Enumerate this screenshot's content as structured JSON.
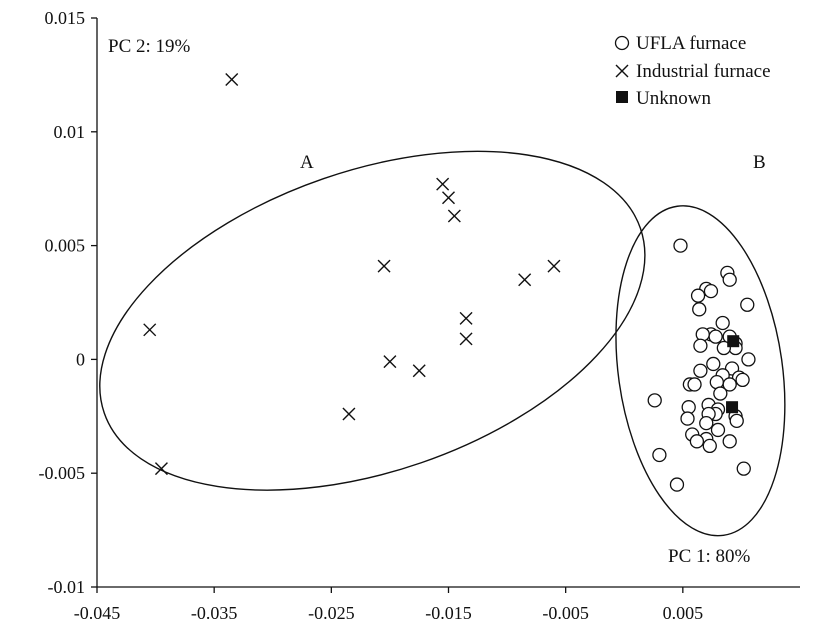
{
  "chart_data": {
    "type": "scatter",
    "title": "",
    "xlabel": "",
    "ylabel": "",
    "xlim": [
      -0.045,
      0.015
    ],
    "ylim": [
      -0.01,
      0.015
    ],
    "grid": false,
    "legend_position": "top-right",
    "x_ticks": [
      -0.045,
      -0.035,
      -0.025,
      -0.015,
      -0.005,
      0.005
    ],
    "x_tick_labels": [
      "-0.045",
      "-0.035",
      "-0.025",
      "-0.015",
      "-0.005",
      "0.005"
    ],
    "y_ticks": [
      -0.01,
      -0.005,
      0,
      0.005,
      0.01,
      0.015
    ],
    "y_tick_labels": [
      "-0.01",
      "-0.005",
      "0",
      "0.005",
      "0.01",
      "0.015"
    ],
    "annotations": {
      "pc2": "PC 2: 19%",
      "pc1": "PC 1: 80%",
      "group_a": "A",
      "group_b": "B"
    },
    "series": [
      {
        "name": "UFLA furnace",
        "marker": "circle",
        "points": [
          [
            0.0048,
            0.005
          ],
          [
            0.0088,
            0.0038
          ],
          [
            0.009,
            0.0035
          ],
          [
            0.007,
            0.0031
          ],
          [
            0.0074,
            0.003
          ],
          [
            0.0063,
            0.0028
          ],
          [
            0.0105,
            0.0024
          ],
          [
            0.0064,
            0.0022
          ],
          [
            0.0084,
            0.0016
          ],
          [
            0.0074,
            0.0011
          ],
          [
            0.0067,
            0.0011
          ],
          [
            0.0078,
            0.001
          ],
          [
            0.009,
            0.001
          ],
          [
            0.0095,
            0.0007
          ],
          [
            0.0065,
            0.0006
          ],
          [
            0.0095,
            0.0005
          ],
          [
            0.0085,
            0.0005
          ],
          [
            0.0106,
            0.0
          ],
          [
            0.0076,
            -0.0002
          ],
          [
            0.0065,
            -0.0005
          ],
          [
            0.0092,
            -0.0004
          ],
          [
            0.0084,
            -0.0007
          ],
          [
            0.0098,
            -0.0008
          ],
          [
            0.0101,
            -0.0009
          ],
          [
            0.0079,
            -0.001
          ],
          [
            0.009,
            -0.0011
          ],
          [
            0.0056,
            -0.0011
          ],
          [
            0.006,
            -0.0011
          ],
          [
            0.0082,
            -0.0015
          ],
          [
            0.0072,
            -0.002
          ],
          [
            0.0026,
            -0.0018
          ],
          [
            0.0055,
            -0.0021
          ],
          [
            0.008,
            -0.0022
          ],
          [
            0.0078,
            -0.0024
          ],
          [
            0.0072,
            -0.0024
          ],
          [
            0.0095,
            -0.0025
          ],
          [
            0.0096,
            -0.0027
          ],
          [
            0.0054,
            -0.0026
          ],
          [
            0.007,
            -0.0028
          ],
          [
            0.008,
            -0.0031
          ],
          [
            0.0058,
            -0.0033
          ],
          [
            0.007,
            -0.0035
          ],
          [
            0.0062,
            -0.0036
          ],
          [
            0.009,
            -0.0036
          ],
          [
            0.0073,
            -0.0038
          ],
          [
            0.003,
            -0.0042
          ],
          [
            0.0102,
            -0.0048
          ],
          [
            0.0045,
            -0.0055
          ]
        ]
      },
      {
        "name": "Industrial furnace",
        "marker": "x",
        "points": [
          [
            -0.0335,
            0.0123
          ],
          [
            -0.0155,
            0.0077
          ],
          [
            -0.015,
            0.0071
          ],
          [
            -0.0145,
            0.0063
          ],
          [
            -0.0205,
            0.0041
          ],
          [
            -0.006,
            0.0041
          ],
          [
            -0.0085,
            0.0035
          ],
          [
            -0.0135,
            0.0018
          ],
          [
            -0.0405,
            0.0013
          ],
          [
            -0.0135,
            0.0009
          ],
          [
            -0.02,
            -0.0001
          ],
          [
            -0.0175,
            -0.0005
          ],
          [
            -0.0235,
            -0.0024
          ],
          [
            -0.0395,
            -0.0048
          ]
        ]
      },
      {
        "name": "Unknown",
        "marker": "square",
        "points": [
          [
            0.0093,
            0.0008
          ],
          [
            0.0092,
            -0.0021
          ]
        ]
      }
    ],
    "ellipses": [
      {
        "label": "A",
        "cx": -0.0215,
        "cy": 0.0017,
        "rx": 0.0242,
        "ry": 0.0066,
        "angle_deg": -19
      },
      {
        "label": "B",
        "cx": 0.0065,
        "cy": -0.0005,
        "rx": 0.007,
        "ry": 0.0073,
        "angle_deg": -8
      }
    ]
  }
}
